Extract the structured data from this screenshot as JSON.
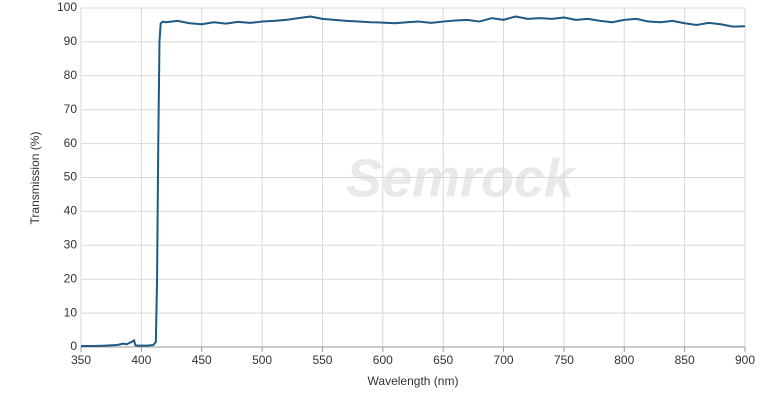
{
  "chart_data": {
    "type": "line",
    "watermark": "Semrock",
    "x_label": "Wavelength (nm)",
    "y_label": "Transmission (%)",
    "x": [
      350,
      360,
      370,
      380,
      385,
      388,
      390,
      392,
      394,
      395,
      397,
      400,
      405,
      410,
      412,
      413,
      414,
      415,
      416,
      418,
      420,
      430,
      440,
      450,
      460,
      470,
      480,
      490,
      500,
      510,
      520,
      530,
      540,
      550,
      560,
      570,
      580,
      590,
      600,
      610,
      620,
      630,
      640,
      650,
      660,
      670,
      680,
      690,
      700,
      710,
      720,
      730,
      740,
      750,
      760,
      770,
      780,
      790,
      800,
      810,
      820,
      830,
      840,
      850,
      860,
      870,
      880,
      890,
      900
    ],
    "series": [
      {
        "name": "Transmission",
        "color": "#1f5a85",
        "values": [
          0.3,
          0.3,
          0.4,
          0.6,
          1.0,
          0.8,
          1.2,
          1.5,
          2.0,
          0.5,
          0.4,
          0.4,
          0.4,
          0.6,
          1.5,
          20,
          60,
          90,
          95.5,
          96,
          95.8,
          96.2,
          95.5,
          95.2,
          95.8,
          95.4,
          95.9,
          95.6,
          96,
          96.2,
          96.5,
          97,
          97.5,
          96.8,
          96.5,
          96.2,
          96,
          95.8,
          95.7,
          95.5,
          95.8,
          96,
          95.6,
          96,
          96.3,
          96.5,
          96,
          97,
          96.5,
          97.5,
          96.8,
          97,
          96.8,
          97.2,
          96.5,
          96.8,
          96.2,
          95.8,
          96.5,
          96.8,
          96,
          95.8,
          96.2,
          95.5,
          95,
          95.6,
          95.2,
          94.5,
          94.6
        ]
      }
    ],
    "xlim": [
      350,
      900
    ],
    "ylim": [
      0,
      100
    ],
    "xticks": [
      350,
      400,
      450,
      500,
      550,
      600,
      650,
      700,
      750,
      800,
      850,
      900
    ],
    "yticks": [
      0,
      10,
      20,
      30,
      40,
      50,
      60,
      70,
      80,
      90,
      100
    ],
    "grid": true
  }
}
